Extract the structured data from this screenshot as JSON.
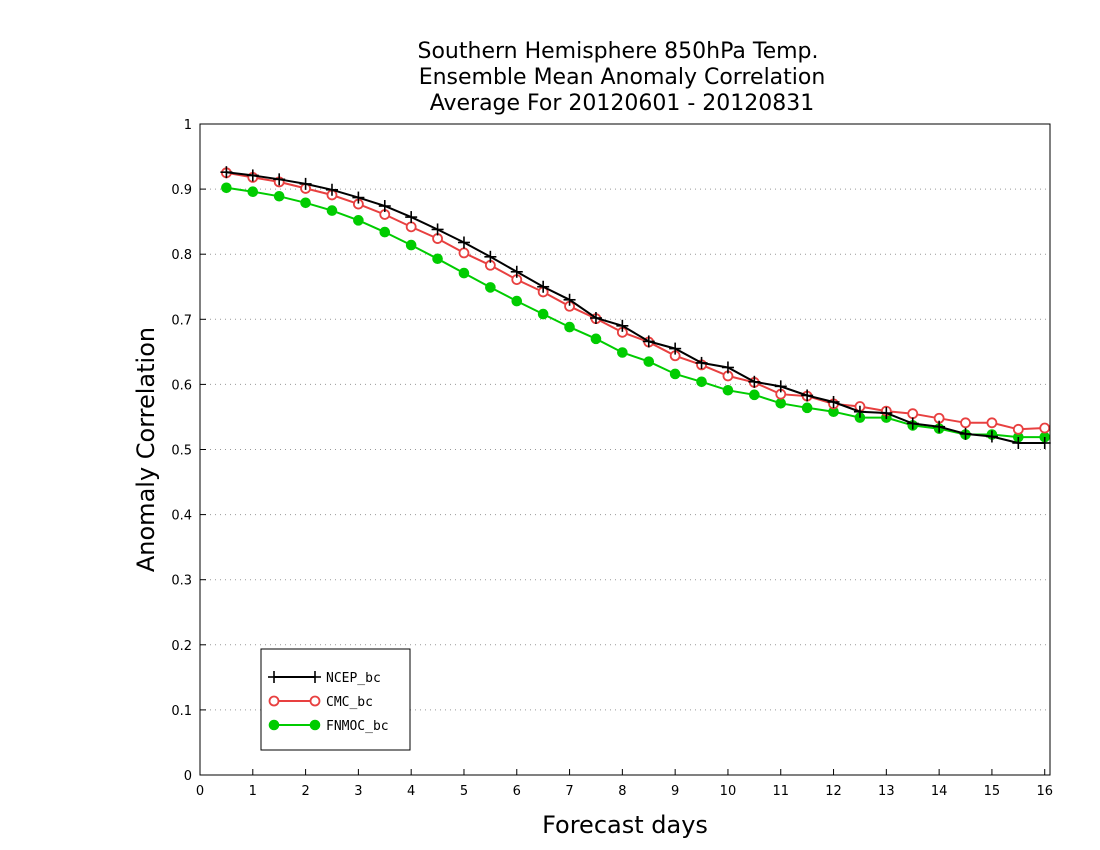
{
  "chart_data": {
    "type": "line",
    "title": [
      "Southern Hemisphere 850hPa Temp.",
      "Ensemble Mean Anomaly Correlation",
      "Average For 20120601 - 20120831"
    ],
    "xlabel": "Forecast days",
    "ylabel": "Anomaly Correlation",
    "xlim": [
      0,
      16.1
    ],
    "ylim": [
      0,
      1
    ],
    "xticks": [
      0,
      1,
      2,
      3,
      4,
      5,
      6,
      7,
      8,
      9,
      10,
      11,
      12,
      13,
      14,
      15,
      16
    ],
    "xtick_labels": [
      "0",
      "1",
      "2",
      "3",
      "4",
      "5",
      "6",
      "7",
      "8",
      "9",
      "10",
      "11",
      "12",
      "13",
      "14",
      "15",
      "16"
    ],
    "yticks": [
      0,
      0.1,
      0.2,
      0.3,
      0.4,
      0.5,
      0.6,
      0.7,
      0.8,
      0.9,
      1
    ],
    "ytick_labels": [
      "0",
      "0.1",
      "0.2",
      "0.3",
      "0.4",
      "0.5",
      "0.6",
      "0.7",
      "0.8",
      "0.9",
      "1"
    ],
    "grid": "horizontal-dotted",
    "legend_position": "bottom-left",
    "x": [
      0.5,
      1,
      1.5,
      2,
      2.5,
      3,
      3.5,
      4,
      4.5,
      5,
      5.5,
      6,
      6.5,
      7,
      7.5,
      8,
      8.5,
      9,
      9.5,
      10,
      10.5,
      11,
      11.5,
      12,
      12.5,
      13,
      13.5,
      14,
      14.5,
      15,
      15.5,
      16
    ],
    "series": [
      {
        "name": "NCEP_bc",
        "color": "#000000",
        "marker": "plus",
        "values": [
          0.926,
          0.921,
          0.915,
          0.908,
          0.899,
          0.887,
          0.874,
          0.857,
          0.838,
          0.818,
          0.796,
          0.773,
          0.75,
          0.73,
          0.702,
          0.69,
          0.666,
          0.655,
          0.633,
          0.626,
          0.604,
          0.597,
          0.583,
          0.573,
          0.558,
          0.556,
          0.54,
          0.535,
          0.524,
          0.52,
          0.51,
          0.51
        ]
      },
      {
        "name": "CMC_bc",
        "color": "#e84040",
        "marker": "open-circle",
        "values": [
          0.925,
          0.918,
          0.911,
          0.901,
          0.891,
          0.877,
          0.861,
          0.842,
          0.824,
          0.802,
          0.783,
          0.761,
          0.742,
          0.72,
          0.701,
          0.68,
          0.665,
          0.644,
          0.63,
          0.613,
          0.603,
          0.585,
          0.582,
          0.57,
          0.566,
          0.559,
          0.555,
          0.548,
          0.541,
          0.541,
          0.531,
          0.533
        ]
      },
      {
        "name": "FNMOC_bc",
        "color": "#00cc00",
        "marker": "filled-circle",
        "values": [
          0.902,
          0.896,
          0.889,
          0.879,
          0.867,
          0.852,
          0.834,
          0.814,
          0.793,
          0.771,
          0.749,
          0.728,
          0.708,
          0.688,
          0.67,
          0.649,
          0.635,
          0.616,
          0.604,
          0.591,
          0.584,
          0.571,
          0.564,
          0.558,
          0.549,
          0.549,
          0.537,
          0.532,
          0.523,
          0.523,
          0.519,
          0.519
        ]
      }
    ]
  }
}
